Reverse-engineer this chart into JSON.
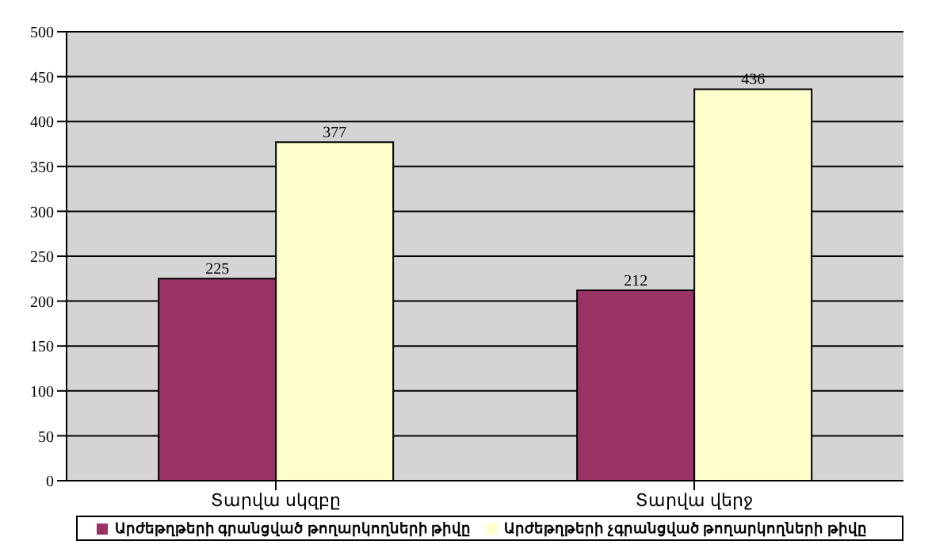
{
  "chart_data": {
    "type": "bar",
    "categories": [
      "Տարվա սկզբը",
      "Տարվա վերջ"
    ],
    "series": [
      {
        "name": "Արժեթղթերի գրանցված թողարկողների թիվը",
        "color": "#993366",
        "values": [
          225,
          212
        ]
      },
      {
        "name": "Արժեթղթերի չգրանցված թողարկողների թիվը",
        "color": "#ffffcc",
        "values": [
          377,
          436
        ]
      }
    ],
    "ylim": [
      0,
      500
    ],
    "yticks": [
      0,
      50,
      100,
      150,
      200,
      250,
      300,
      350,
      400,
      450,
      500
    ],
    "grid": "y",
    "legend": "bottom",
    "data_labels": true
  }
}
